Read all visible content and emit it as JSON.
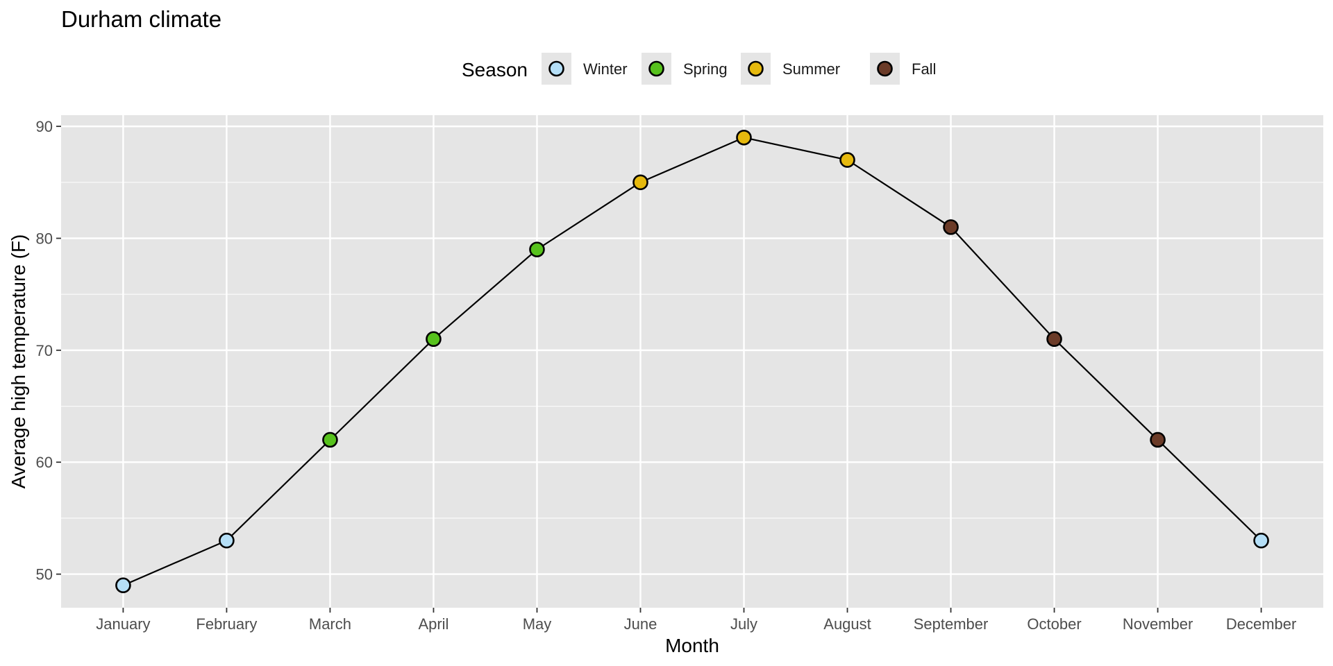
{
  "chart_data": {
    "type": "line",
    "title": "Durham climate",
    "xlabel": "Month",
    "ylabel": "Average high temperature (F)",
    "categories": [
      "January",
      "February",
      "March",
      "April",
      "May",
      "June",
      "July",
      "August",
      "September",
      "October",
      "November",
      "December"
    ],
    "values": [
      49,
      53,
      62,
      71,
      79,
      85,
      89,
      87,
      81,
      71,
      62,
      53
    ],
    "seasons": [
      "Winter",
      "Winter",
      "Spring",
      "Spring",
      "Spring",
      "Summer",
      "Summer",
      "Summer",
      "Fall",
      "Fall",
      "Fall",
      "Winter"
    ],
    "yticks": [
      50,
      60,
      70,
      80,
      90
    ],
    "ylim": [
      47.0,
      91.0
    ],
    "grid": true,
    "legend": {
      "title": "Season",
      "position": "top",
      "entries": [
        {
          "label": "Winter",
          "color": "#b5dff7"
        },
        {
          "label": "Spring",
          "color": "#57c21d"
        },
        {
          "label": "Summer",
          "color": "#e6b90e"
        },
        {
          "label": "Fall",
          "color": "#6b3b28"
        }
      ]
    },
    "colors": {
      "panel_background": "#e5e5e5",
      "gridline": "#ffffff",
      "line": "#000000",
      "point_outline": "#000000"
    }
  }
}
